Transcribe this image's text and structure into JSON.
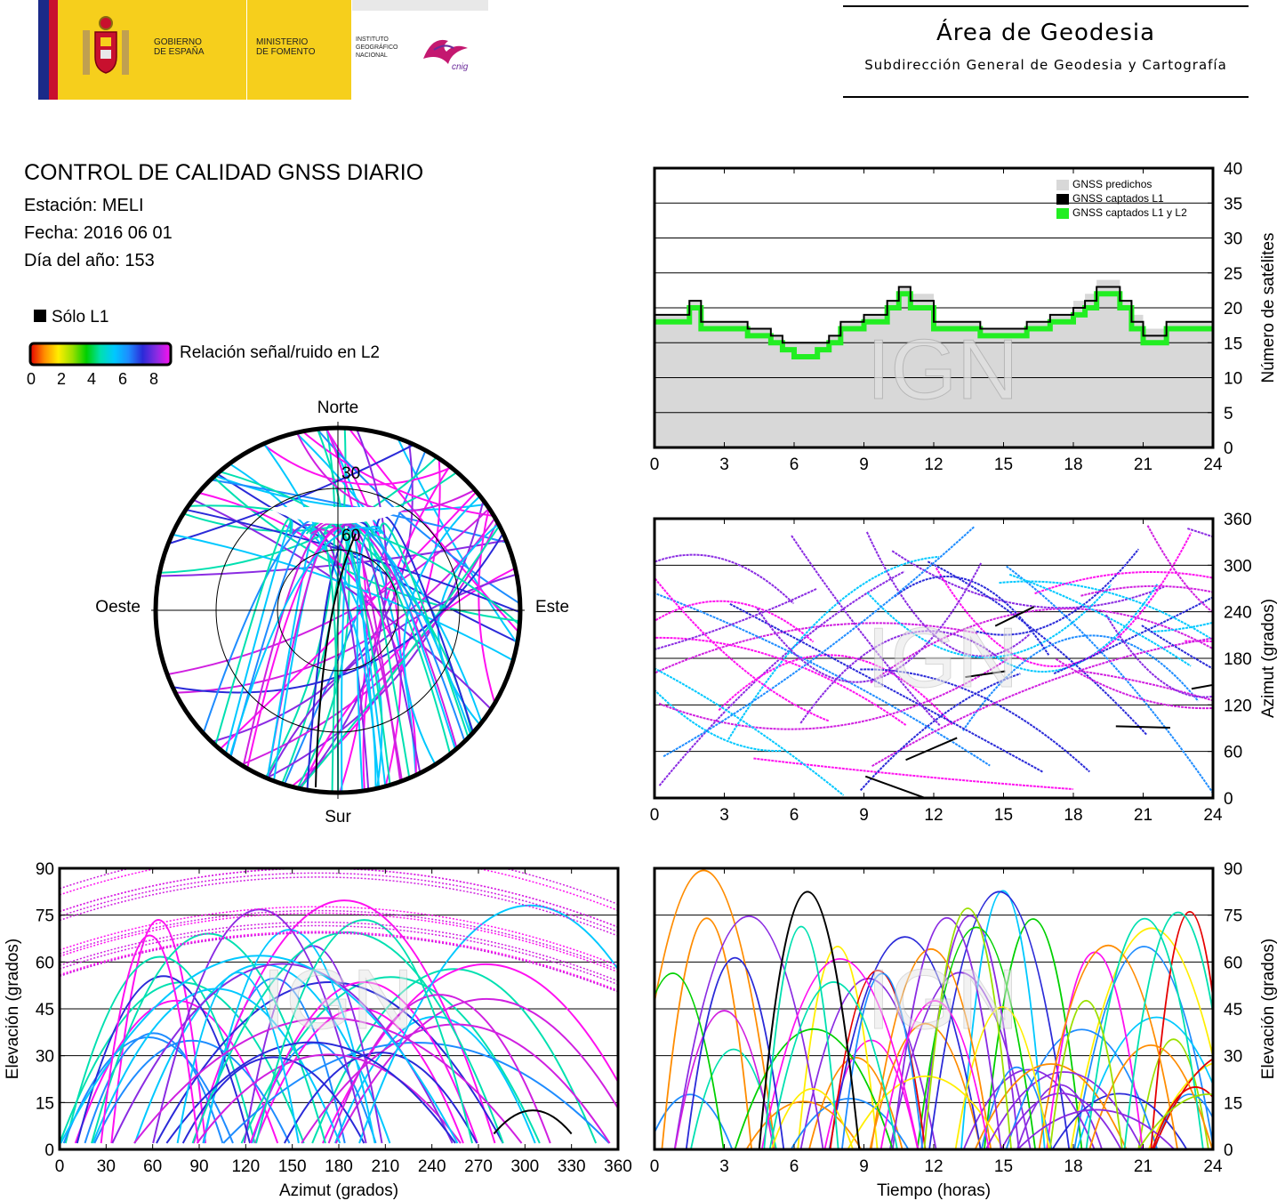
{
  "header": {
    "gov_line1": "GOBIERNO",
    "gov_line2": "DE ESPAÑA",
    "min_line1": "MINISTERIO",
    "min_line2": "DE FOMENTO",
    "inst_line1": "INSTITUTO",
    "inst_line2": "GEOGRÁFICO",
    "inst_line3": "NACIONAL",
    "inst_logo_word": "cnig",
    "area_title": "Área de Geodesia",
    "area_subtitle": "Subdirección General de Geodesia y Cartografía"
  },
  "report": {
    "title": "CONTROL DE CALIDAD GNSS DIARIO",
    "station": "Estación: MELI",
    "date": "Fecha: 2016 06 01",
    "doy": "Día del año: 153"
  },
  "legend": {
    "solo_l1": "Sólo L1",
    "snr_label": "Relación señal/ruido en L2",
    "snr_ticks": [
      "0",
      "2",
      "4",
      "6",
      "8"
    ],
    "snr_colors": [
      "#e60000",
      "#ff8c00",
      "#ffee00",
      "#9be000",
      "#00d000",
      "#00e0b0",
      "#00c8ff",
      "#1e8cff",
      "#2a2ad8",
      "#8a2be2",
      "#d020e0",
      "#ff10f0"
    ]
  },
  "watermark": "IGN",
  "colors": {
    "predicted": "#d8d8d8",
    "l1": "#000000",
    "l1l2": "#22ee22",
    "grid": "#000000"
  },
  "chart_data": [
    {
      "id": "skyplot",
      "type": "scatter",
      "subtype": "polar-skyplot",
      "directions": {
        "north": "Norte",
        "south": "Sur",
        "east": "Este",
        "west": "Oeste"
      },
      "ring_labels": [
        "30",
        "60"
      ],
      "rings_elevation": [
        30,
        60
      ]
    },
    {
      "id": "satellites",
      "type": "area",
      "legend": [
        "GNSS predichos",
        "GNSS captados L1",
        "GNSS captados L1 y L2"
      ],
      "ylabel": "Número de satélites",
      "xticks": [
        "0",
        "3",
        "6",
        "9",
        "12",
        "15",
        "18",
        "21",
        "24"
      ],
      "yticks": [
        "0",
        "5",
        "10",
        "15",
        "20",
        "25",
        "30",
        "35",
        "40"
      ],
      "xlim": [
        0,
        24
      ],
      "ylim": [
        0,
        40
      ],
      "x": [
        0,
        1,
        1.5,
        2,
        3,
        4,
        5,
        5.5,
        6,
        7,
        7.5,
        8,
        9,
        10,
        10.5,
        11,
        12,
        13,
        14,
        15,
        16,
        17,
        18,
        18.5,
        19,
        20,
        20.5,
        21,
        22,
        23,
        24
      ],
      "series": [
        {
          "name": "GNSS predichos",
          "values": [
            19,
            19,
            21,
            18,
            18,
            17,
            16,
            15,
            15,
            15,
            16,
            18,
            19,
            21,
            23,
            22,
            18,
            18,
            17,
            17,
            18,
            19,
            21,
            22,
            24,
            21,
            19,
            17,
            18,
            18,
            18
          ]
        },
        {
          "name": "GNSS captados L1",
          "values": [
            19,
            19,
            21,
            18,
            18,
            17,
            16,
            15,
            15,
            15,
            16,
            18,
            19,
            21,
            23,
            21,
            18,
            18,
            17,
            17,
            18,
            19,
            20,
            21,
            23,
            21,
            18,
            16,
            18,
            18,
            18
          ]
        },
        {
          "name": "GNSS captados L1 y L2",
          "values": [
            18,
            18,
            20,
            17,
            17,
            16,
            15,
            14,
            13,
            14,
            15,
            17,
            18,
            20,
            22,
            20,
            17,
            17,
            16,
            16,
            17,
            18,
            19,
            20,
            22,
            20,
            17,
            15,
            17,
            17,
            17
          ]
        }
      ]
    },
    {
      "id": "azimuth_time",
      "type": "scatter",
      "ylabel": "Azimut (grados)",
      "xticks": [
        "0",
        "3",
        "6",
        "9",
        "12",
        "15",
        "18",
        "21",
        "24"
      ],
      "yticks": [
        "0",
        "60",
        "120",
        "180",
        "240",
        "300",
        "360"
      ],
      "xlim": [
        0,
        24
      ],
      "ylim": [
        0,
        360
      ]
    },
    {
      "id": "elevation_azimuth",
      "type": "scatter",
      "xlabel": "Azimut (grados)",
      "ylabel": "Elevación (grados)",
      "xticks": [
        "0",
        "30",
        "60",
        "90",
        "120",
        "150",
        "180",
        "210",
        "240",
        "270",
        "300",
        "330",
        "360"
      ],
      "yticks": [
        "0",
        "15",
        "30",
        "45",
        "60",
        "75",
        "90"
      ],
      "xlim": [
        0,
        360
      ],
      "ylim": [
        0,
        90
      ]
    },
    {
      "id": "elevation_time",
      "type": "scatter",
      "xlabel": "Tiempo (horas)",
      "ylabel": "Elevación (grados)",
      "xticks": [
        "0",
        "3",
        "6",
        "9",
        "12",
        "15",
        "18",
        "21",
        "24"
      ],
      "yticks": [
        "0",
        "15",
        "30",
        "45",
        "60",
        "75",
        "90"
      ],
      "xlim": [
        0,
        24
      ],
      "ylim": [
        0,
        90
      ]
    }
  ]
}
